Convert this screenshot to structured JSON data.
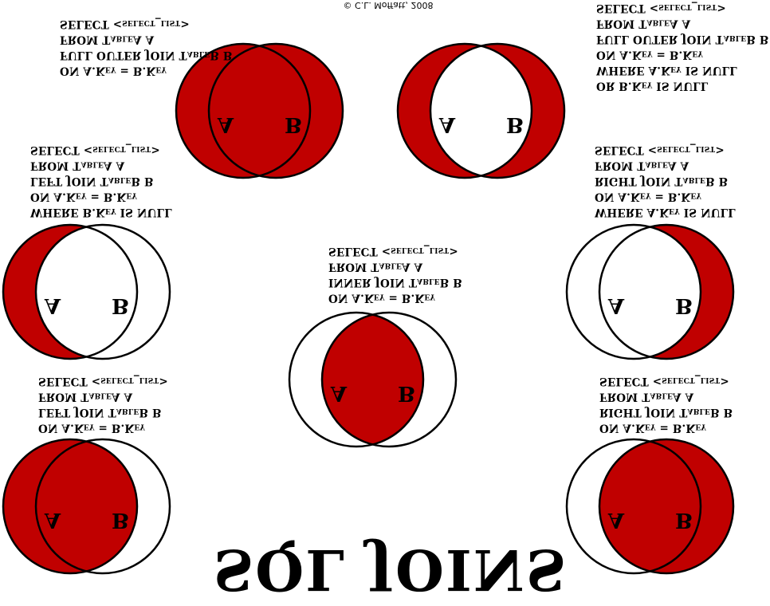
{
  "copyright": "© C.L. Moffatt, 2008",
  "title": "SQL JOINS",
  "colors": {
    "fill": "#c00000",
    "stroke": "#000000",
    "background": "#ffffff"
  },
  "labels": {
    "a": "A",
    "b": "B"
  },
  "diagrams": [
    {
      "id": "full-outer",
      "regions": [
        "a_only",
        "both",
        "b_only"
      ],
      "lines": [
        "SELECT <select_list>",
        "FROM TableA A",
        "FULL OUTER JOIN TableB B",
        "ON A.Key = B.Key"
      ]
    },
    {
      "id": "full-outer-null",
      "regions": [
        "a_only",
        "b_only"
      ],
      "lines": [
        "SELECT <select_list>",
        "FROM TableA A",
        "FULL OUTER JOIN TableB B",
        "ON A.Key = B.Key",
        "WHERE A.Key IS NULL",
        "OR B.Key IS NULL"
      ]
    },
    {
      "id": "left-null",
      "regions": [
        "a_only"
      ],
      "lines": [
        "SELECT <select_list>",
        "FROM TableA A",
        "LEFT JOIN TableB B",
        "ON A.Key = B.Key",
        "WHERE B.Key IS NULL"
      ]
    },
    {
      "id": "right-null",
      "regions": [
        "b_only"
      ],
      "lines": [
        "SELECT <select_list>",
        "FROM TableA A",
        "RIGHT JOIN TableB B",
        "ON A.Key = B.Key",
        "WHERE A.Key IS NULL"
      ]
    },
    {
      "id": "inner",
      "regions": [
        "both"
      ],
      "lines": [
        "SELECT <select_list>",
        "FROM TableA A",
        "INNER JOIN TableB B",
        "ON A.Key = B.Key"
      ]
    },
    {
      "id": "left",
      "regions": [
        "a_only",
        "both"
      ],
      "lines": [
        "SELECT <select_list>",
        "FROM TableA A",
        "LEFT JOIN TableB B",
        "ON A.Key = B.Key"
      ]
    },
    {
      "id": "right",
      "regions": [
        "both",
        "b_only"
      ],
      "lines": [
        "SELECT <select_list>",
        "FROM TableA A",
        "RIGHT JOIN TableB B",
        "ON A.Key = B.Key"
      ]
    }
  ]
}
